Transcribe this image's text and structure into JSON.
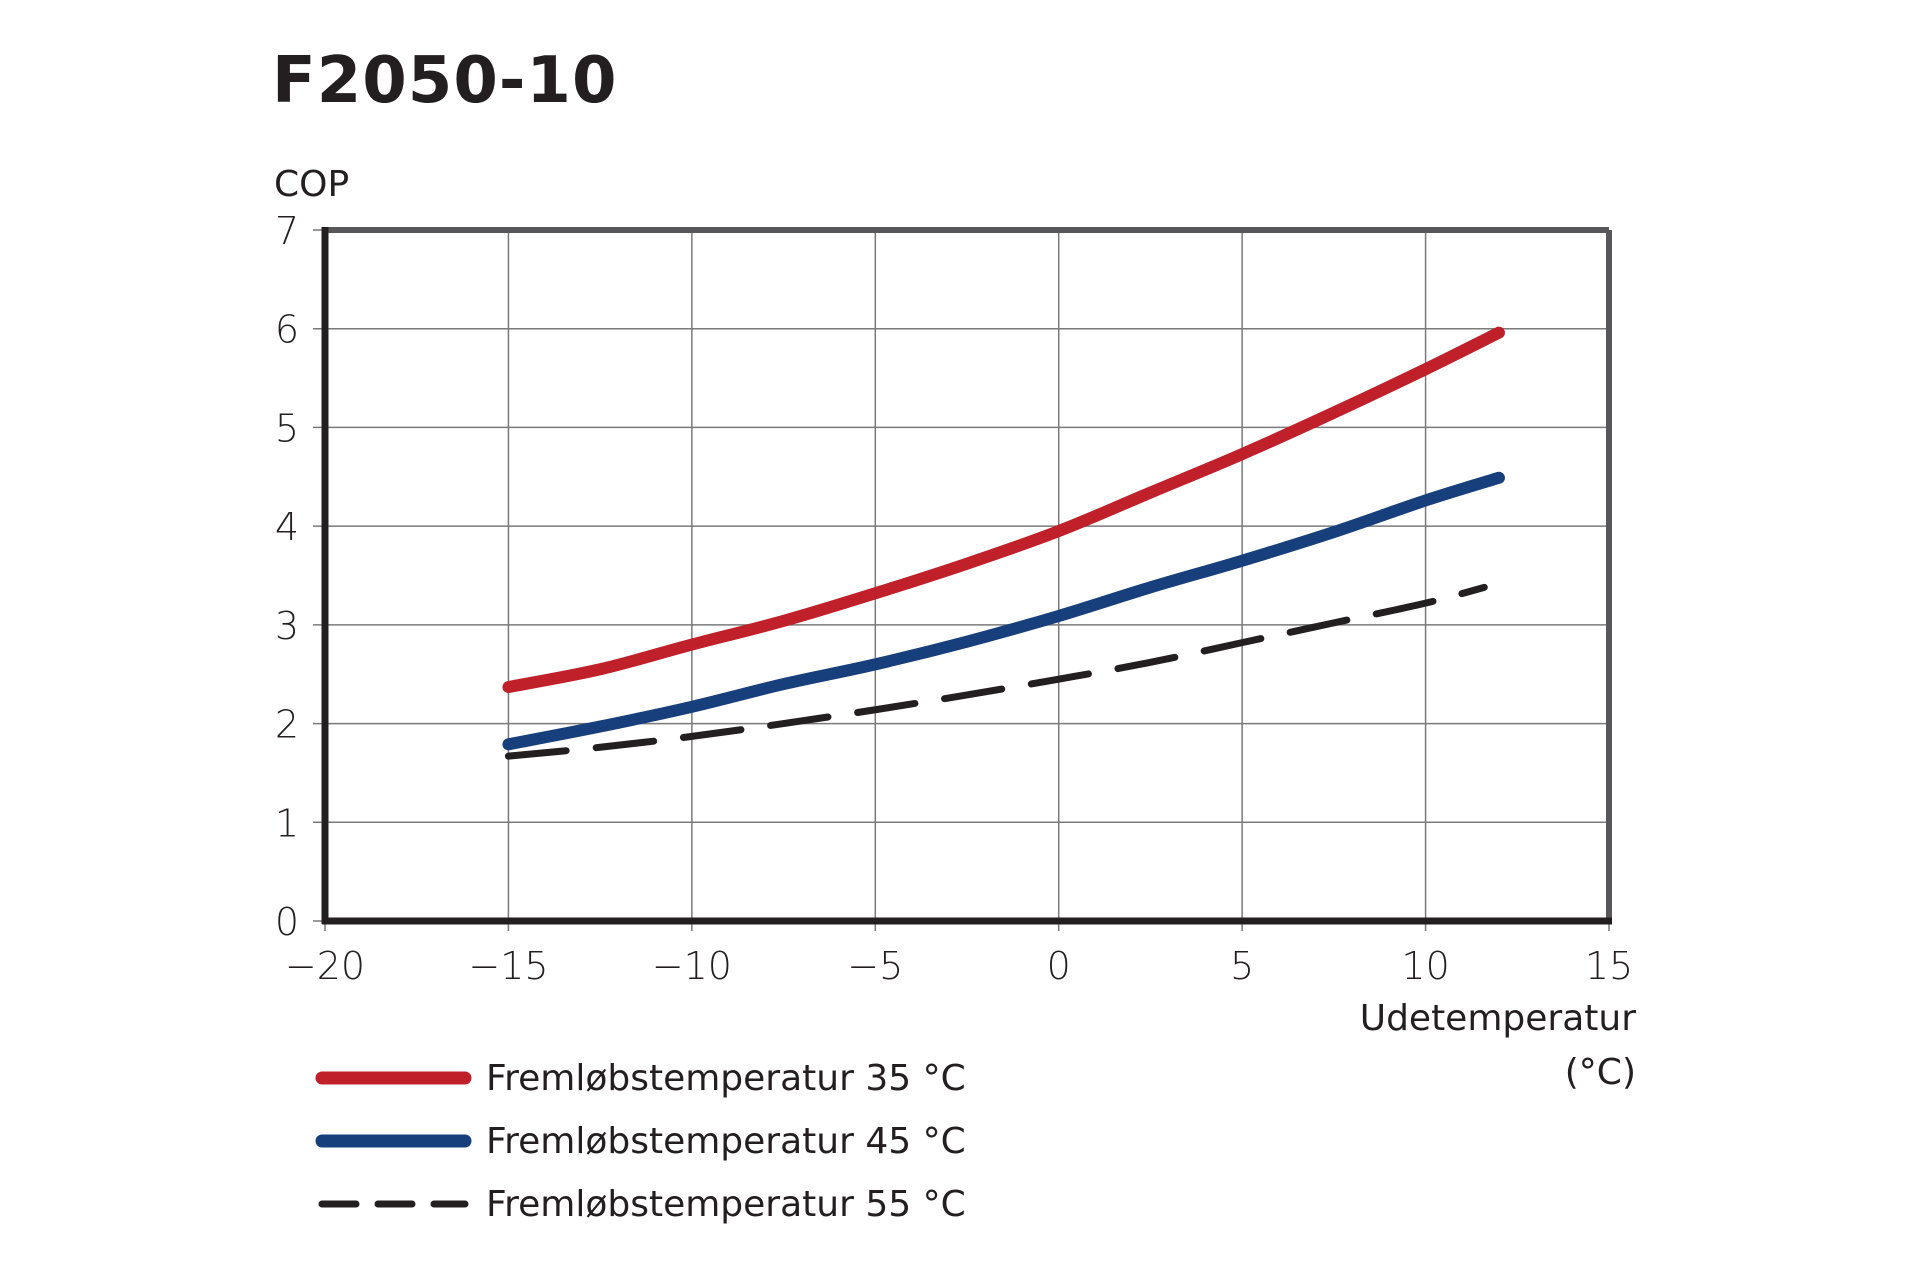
{
  "chart_data": {
    "type": "line",
    "title": "F2050-10",
    "ylabel": "COP",
    "xlabel": [
      "Udetemperatur",
      "(°C)"
    ],
    "xlim": [
      -20,
      15
    ],
    "ylim": [
      0,
      7
    ],
    "xticks": [
      "-20",
      "-15",
      "-10",
      "-5",
      "0",
      "5",
      "10",
      "15"
    ],
    "yticks": [
      "0",
      "1",
      "2",
      "3",
      "4",
      "5",
      "6",
      "7"
    ],
    "grid": true,
    "legend_position": "bottom-left",
    "series": [
      {
        "name": "Fremløbstemperatur 35 °C",
        "color": "#c0202a",
        "style": "solid",
        "x": [
          -15,
          -12.5,
          -10,
          -7.5,
          -5,
          -2.5,
          0,
          2.5,
          5,
          7.5,
          10,
          12
        ],
        "y": [
          2.37,
          2.55,
          2.8,
          3.04,
          3.32,
          3.62,
          3.95,
          4.34,
          4.73,
          5.15,
          5.59,
          5.96
        ]
      },
      {
        "name": "Fremløbstemperatur 45 °C",
        "color": "#173f7c",
        "style": "solid",
        "x": [
          -15,
          -12.5,
          -10,
          -7.5,
          -5,
          -2.5,
          0,
          2.5,
          5,
          7.5,
          10,
          12
        ],
        "y": [
          1.79,
          1.97,
          2.17,
          2.4,
          2.6,
          2.83,
          3.09,
          3.38,
          3.65,
          3.94,
          4.26,
          4.49
        ]
      },
      {
        "name": "Fremløbstemperatur 55 °C",
        "color": "#231f20",
        "style": "dashed",
        "x": [
          -15,
          -12.5,
          -10,
          -7.5,
          -5,
          -2.5,
          0,
          2.5,
          5,
          7.5,
          10,
          11.6
        ],
        "y": [
          1.67,
          1.76,
          1.87,
          2.0,
          2.14,
          2.29,
          2.45,
          2.62,
          2.82,
          3.02,
          3.22,
          3.38
        ]
      }
    ]
  }
}
